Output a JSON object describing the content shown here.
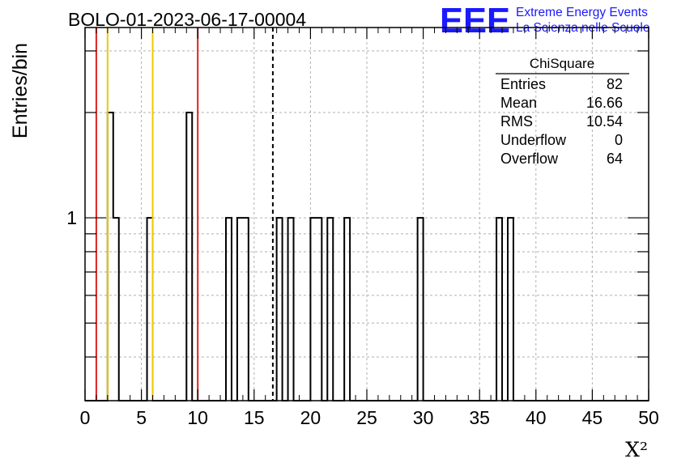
{
  "title": "BOLO-01-2023-06-17-00004",
  "logo": {
    "letters": "EEE",
    "line1": "Extreme Energy Events",
    "line2": "La Scienza nelle Scuole",
    "color": "#1a1aff"
  },
  "stats_box": {
    "title": "ChiSquare",
    "rows": [
      {
        "label": "Entries",
        "value": "82"
      },
      {
        "label": "Mean",
        "value": "16.66"
      },
      {
        "label": "RMS",
        "value": "10.54"
      },
      {
        "label": "Underflow",
        "value": "0"
      },
      {
        "label": "Overflow",
        "value": "64"
      }
    ]
  },
  "chart_data": {
    "type": "histogram",
    "xlabel": "Χ²",
    "ylabel": "Entries/bin",
    "xlim": [
      0,
      50
    ],
    "y_scale": "log",
    "ylim": [
      0.3,
      3.5
    ],
    "x_ticks": [
      0,
      5,
      10,
      15,
      20,
      25,
      30,
      35,
      40,
      45,
      50
    ],
    "y_tick_labels": [
      {
        "value": 1,
        "label": "1"
      }
    ],
    "bin_width": 0.5,
    "bins": [
      {
        "x": 2.0,
        "count": 2
      },
      {
        "x": 2.5,
        "count": 1
      },
      {
        "x": 5.5,
        "count": 1
      },
      {
        "x": 9.0,
        "count": 2
      },
      {
        "x": 12.5,
        "count": 1
      },
      {
        "x": 13.5,
        "count": 1
      },
      {
        "x": 14.0,
        "count": 1
      },
      {
        "x": 17.0,
        "count": 1
      },
      {
        "x": 18.0,
        "count": 1
      },
      {
        "x": 20.0,
        "count": 1
      },
      {
        "x": 20.5,
        "count": 1
      },
      {
        "x": 21.5,
        "count": 1
      },
      {
        "x": 23.0,
        "count": 1
      },
      {
        "x": 29.5,
        "count": 1
      },
      {
        "x": 36.5,
        "count": 1
      },
      {
        "x": 37.5,
        "count": 1
      }
    ],
    "vertical_lines": [
      {
        "x": 1,
        "color": "#dd2222",
        "style": "solid"
      },
      {
        "x": 2,
        "color": "#f0c800",
        "style": "solid"
      },
      {
        "x": 6,
        "color": "#f0c800",
        "style": "solid"
      },
      {
        "x": 10,
        "color": "#dd2222",
        "style": "solid"
      },
      {
        "x": 16.66,
        "color": "#000000",
        "style": "dashed"
      }
    ],
    "grid": true
  }
}
